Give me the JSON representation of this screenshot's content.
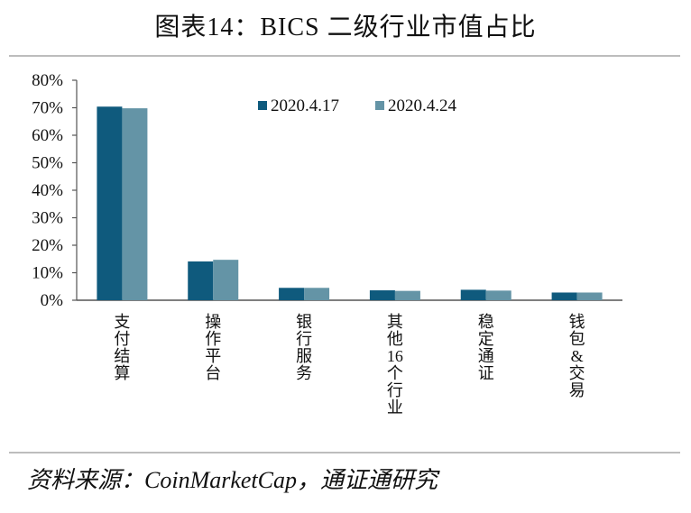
{
  "header": {
    "title": "图表14：BICS 二级行业市值占比"
  },
  "footer": {
    "source": "资料来源：CoinMarketCap，通证通研究"
  },
  "colors": {
    "series1": "#0f5a7d",
    "series2": "#6494a6",
    "axis": "#555555",
    "rule": "#bdbdbd"
  },
  "chart_data": {
    "type": "bar",
    "title": "BICS 二级行业市值占比",
    "xlabel": "",
    "ylabel": "",
    "ylim": [
      0,
      80
    ],
    "yticks": [
      "0%",
      "10%",
      "20%",
      "30%",
      "40%",
      "50%",
      "60%",
      "70%",
      "80%"
    ],
    "grid": false,
    "legend_position": "top-center (inside plot)",
    "categories": [
      "支付结算",
      "操作平台",
      "银行服务",
      "其他16个行业",
      "稳定通证",
      "钱包&交易"
    ],
    "series": [
      {
        "name": "2020.4.17",
        "values": [
          70.4,
          14.1,
          4.5,
          3.6,
          3.8,
          2.8
        ]
      },
      {
        "name": "2020.4.24",
        "values": [
          69.8,
          14.7,
          4.5,
          3.4,
          3.5,
          2.8
        ]
      }
    ]
  }
}
